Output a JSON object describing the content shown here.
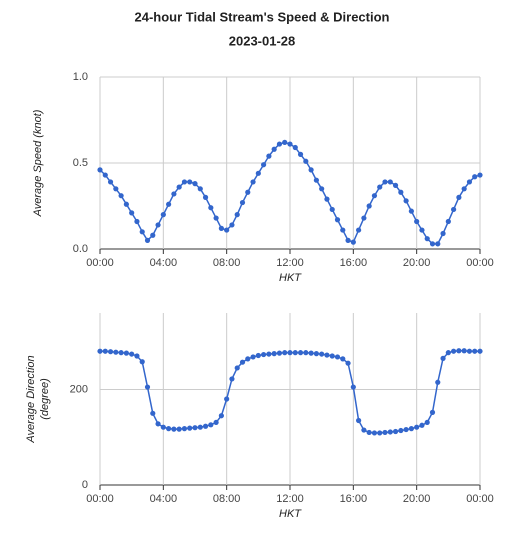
{
  "title": "24-hour Tidal Stream's Speed & Direction",
  "subtitle": "2023-01-28",
  "chart_data": [
    {
      "type": "line",
      "xlabel": "HKT",
      "ylabel": [
        "Average Speed (knot)"
      ],
      "color": "#3366cc",
      "grid": true,
      "xlim": [
        0,
        1440
      ],
      "xticks": [
        {
          "value": 0,
          "label": "00:00"
        },
        {
          "value": 240,
          "label": "04:00"
        },
        {
          "value": 480,
          "label": "08:00"
        },
        {
          "value": 720,
          "label": "12:00"
        },
        {
          "value": 960,
          "label": "16:00"
        },
        {
          "value": 1200,
          "label": "20:00"
        },
        {
          "value": 1440,
          "label": "00:00"
        }
      ],
      "ylim": [
        0,
        1
      ],
      "yticks": [
        {
          "value": 0,
          "label": "0.0"
        },
        0.5,
        {
          "value": 1,
          "label": "1.0"
        }
      ],
      "x": [
        0,
        20,
        40,
        60,
        80,
        100,
        120,
        140,
        160,
        180,
        200,
        220,
        240,
        260,
        280,
        300,
        320,
        340,
        360,
        380,
        400,
        420,
        440,
        460,
        480,
        500,
        520,
        540,
        560,
        580,
        600,
        620,
        640,
        660,
        680,
        700,
        720,
        740,
        760,
        780,
        800,
        820,
        840,
        860,
        880,
        900,
        920,
        940,
        960,
        980,
        1000,
        1020,
        1040,
        1060,
        1080,
        1100,
        1120,
        1140,
        1160,
        1180,
        1200,
        1220,
        1240,
        1260,
        1280,
        1300,
        1320,
        1340,
        1360,
        1380,
        1400,
        1420,
        1440
      ],
      "values": [
        0.46,
        0.43,
        0.39,
        0.35,
        0.31,
        0.26,
        0.21,
        0.16,
        0.1,
        0.05,
        0.08,
        0.14,
        0.2,
        0.26,
        0.32,
        0.36,
        0.39,
        0.39,
        0.38,
        0.35,
        0.3,
        0.24,
        0.18,
        0.12,
        0.11,
        0.14,
        0.2,
        0.27,
        0.33,
        0.39,
        0.44,
        0.49,
        0.54,
        0.58,
        0.61,
        0.62,
        0.61,
        0.59,
        0.55,
        0.51,
        0.46,
        0.4,
        0.35,
        0.29,
        0.23,
        0.17,
        0.11,
        0.05,
        0.04,
        0.11,
        0.18,
        0.25,
        0.31,
        0.36,
        0.39,
        0.39,
        0.37,
        0.33,
        0.28,
        0.22,
        0.16,
        0.11,
        0.06,
        0.03,
        0.03,
        0.09,
        0.16,
        0.23,
        0.3,
        0.35,
        0.39,
        0.42,
        0.43
      ]
    },
    {
      "type": "line",
      "xlabel": "HKT",
      "ylabel": [
        "Average Direction",
        "(degree)"
      ],
      "color": "#3366cc",
      "grid": true,
      "xlim": [
        0,
        1440
      ],
      "xticks": [
        {
          "value": 0,
          "label": "00:00"
        },
        {
          "value": 240,
          "label": "04:00"
        },
        {
          "value": 480,
          "label": "08:00"
        },
        {
          "value": 720,
          "label": "12:00"
        },
        {
          "value": 960,
          "label": "16:00"
        },
        {
          "value": 1200,
          "label": "20:00"
        },
        {
          "value": 1440,
          "label": "00:00"
        }
      ],
      "ylim": [
        0,
        360
      ],
      "yticks": [
        0,
        200
      ],
      "x": [
        0,
        20,
        40,
        60,
        80,
        100,
        120,
        140,
        160,
        180,
        200,
        220,
        240,
        260,
        280,
        300,
        320,
        340,
        360,
        380,
        400,
        420,
        440,
        460,
        480,
        500,
        520,
        540,
        560,
        580,
        600,
        620,
        640,
        660,
        680,
        700,
        720,
        740,
        760,
        780,
        800,
        820,
        840,
        860,
        880,
        900,
        920,
        940,
        960,
        980,
        1000,
        1020,
        1040,
        1060,
        1080,
        1100,
        1120,
        1140,
        1160,
        1180,
        1200,
        1220,
        1240,
        1260,
        1280,
        1300,
        1320,
        1340,
        1360,
        1380,
        1400,
        1420,
        1440
      ],
      "values": [
        280,
        280,
        279,
        278,
        277,
        276,
        274,
        270,
        258,
        205,
        150,
        128,
        121,
        118,
        117,
        117,
        118,
        119,
        120,
        121,
        123,
        126,
        131,
        145,
        180,
        222,
        245,
        257,
        264,
        268,
        271,
        273,
        274,
        275,
        276,
        277,
        277,
        277,
        277,
        277,
        276,
        275,
        274,
        272,
        270,
        268,
        264,
        255,
        205,
        135,
        115,
        110,
        109,
        109,
        110,
        111,
        112,
        114,
        116,
        118,
        121,
        125,
        131,
        152,
        215,
        265,
        277,
        280,
        281,
        281,
        280,
        280,
        280
      ]
    }
  ]
}
